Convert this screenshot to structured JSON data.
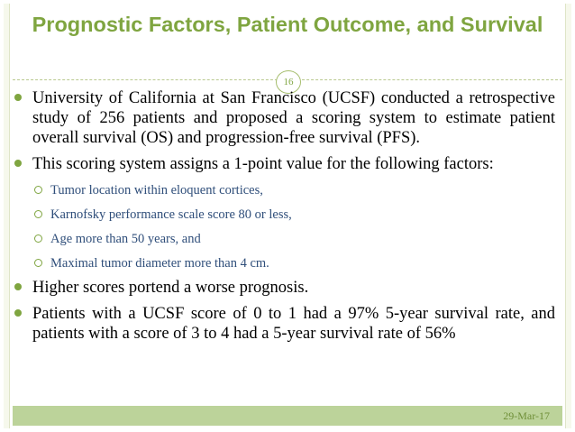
{
  "slide": {
    "title": "Prognostic Factors, Patient Outcome, and Survival",
    "page_number": "16",
    "date": "29-Mar-17",
    "bullets": [
      "University of California at San Francisco (UCSF) conducted a retrospective study of 256 patients and proposed a scoring system to estimate patient overall survival (OS) and progression-free survival (PFS).",
      "This scoring system assigns a 1-point value for the following factors:",
      "Higher scores portend a worse prognosis.",
      "Patients with a UCSF score of 0 to 1 had a 97% 5-year survival rate, and patients with a score of 3 to 4 had a 5-year survival rate of 56%"
    ],
    "subbullets": [
      "Tumor location within eloquent cortices,",
      "Karnofsky performance scale score 80 or less,",
      "Age more than 50 years, and",
      "Maximal tumor diameter more than 4 cm."
    ]
  }
}
